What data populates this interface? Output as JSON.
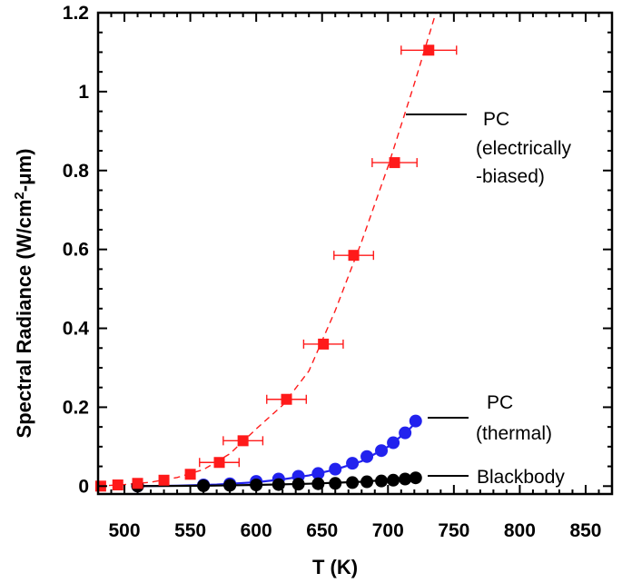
{
  "chart_data": {
    "type": "scatter",
    "title": "",
    "xlabel": "T (K)",
    "ylabel_parts": {
      "main": "Spectral Radiance (W/cm",
      "sup": "2",
      "tail": "-μm)"
    },
    "xlim": [
      480,
      870
    ],
    "ylim": [
      -0.02,
      1.2
    ],
    "xticks": [
      500,
      550,
      600,
      650,
      700,
      750,
      800,
      850
    ],
    "yticks": [
      0,
      0.2,
      0.4,
      0.6,
      0.8,
      1,
      1.2
    ],
    "ytick_labels": [
      "0",
      "0.2",
      "0.4",
      "0.6",
      "0.8",
      "1",
      "1.2"
    ],
    "grid": false,
    "series": [
      {
        "name": "PC (electrically-biased)",
        "marker": "square",
        "color": "#ff1a1a",
        "line_style": "dashed",
        "x": [
          482,
          495,
          510,
          530,
          550,
          572,
          590,
          623,
          651,
          674,
          705,
          731
        ],
        "y": [
          0.0,
          0.003,
          0.007,
          0.015,
          0.03,
          0.06,
          0.115,
          0.22,
          0.36,
          0.585,
          0.82,
          1.105
        ],
        "xerr": [
          0,
          0,
          0,
          0,
          0,
          15,
          15,
          15,
          15,
          15,
          17,
          21
        ],
        "fit_x": [
          480,
          500,
          520,
          540,
          560,
          580,
          600,
          620,
          640,
          660,
          680,
          700,
          720,
          740
        ],
        "fit_y": [
          0.0,
          0.004,
          0.01,
          0.022,
          0.042,
          0.082,
          0.145,
          0.205,
          0.292,
          0.445,
          0.62,
          0.81,
          1.02,
          1.24
        ]
      },
      {
        "name": "PC (thermal)",
        "marker": "circle",
        "color": "#2222ee",
        "line_style": "solid",
        "x": [
          510,
          560,
          580,
          600,
          617,
          632,
          647,
          660,
          673,
          684,
          695,
          704,
          713,
          721
        ],
        "y": [
          0.0,
          0.003,
          0.006,
          0.012,
          0.018,
          0.025,
          0.032,
          0.043,
          0.058,
          0.075,
          0.09,
          0.11,
          0.135,
          0.165
        ],
        "fit_x": [
          507,
          540,
          570,
          600,
          620,
          640,
          660,
          680,
          700,
          715,
          722
        ],
        "fit_y": [
          0.0,
          0.001,
          0.004,
          0.01,
          0.017,
          0.027,
          0.042,
          0.063,
          0.1,
          0.14,
          0.165
        ]
      },
      {
        "name": "Blackbody",
        "marker": "circle",
        "color": "#000000",
        "line_style": "solid",
        "x": [
          510,
          560,
          580,
          600,
          617,
          632,
          647,
          660,
          673,
          684,
          695,
          704,
          713,
          721
        ],
        "y": [
          0.0,
          0.001,
          0.002,
          0.003,
          0.004,
          0.005,
          0.006,
          0.007,
          0.009,
          0.011,
          0.013,
          0.015,
          0.018,
          0.021
        ],
        "fit_x": [
          507,
          560,
          600,
          640,
          680,
          722
        ],
        "fit_y": [
          0.0,
          0.001,
          0.003,
          0.006,
          0.011,
          0.021
        ]
      }
    ],
    "annotations": [
      {
        "lines": [
          "PC",
          "(electrically",
          "-biased)"
        ],
        "anchor": "line-top"
      },
      {
        "lines": [
          "PC",
          "(thermal)"
        ],
        "anchor": "line-mid"
      },
      {
        "lines": [
          "Blackbody"
        ],
        "anchor": "line-bottom"
      }
    ]
  }
}
